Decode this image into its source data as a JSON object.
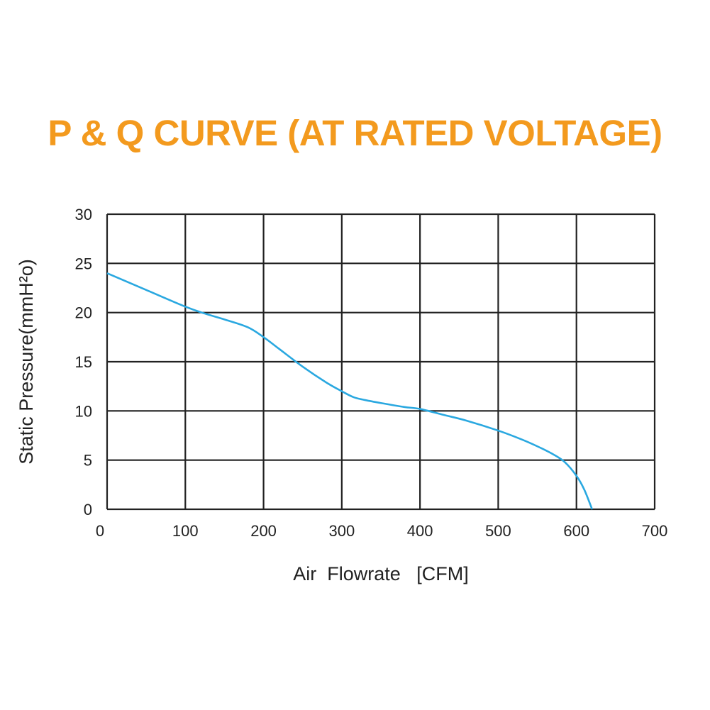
{
  "colors": {
    "title": "#f39a1e",
    "curve": "#2aa8e0",
    "grid": "#222222",
    "text": "#222222"
  },
  "chart_data": {
    "type": "line",
    "title": "P & Q CURVE (AT RATED VOLTAGE)",
    "xlabel": "Air  Flowrate   [CFM]",
    "ylabel": "Static Pressure(mmH²o)",
    "xlim": [
      0,
      700
    ],
    "ylim": [
      0,
      30
    ],
    "xticks": [
      0,
      100,
      200,
      300,
      400,
      500,
      600,
      700
    ],
    "yticks": [
      0,
      5,
      10,
      15,
      20,
      25,
      30
    ],
    "grid": true,
    "series": [
      {
        "x": [
          0,
          50,
          100,
          125,
          150,
          180,
          200,
          220,
          250,
          280,
          300,
          315,
          330,
          350,
          380,
          400,
          430,
          460,
          500,
          530,
          550,
          570,
          585,
          600,
          610,
          620
        ],
        "y": [
          24,
          22.3,
          20.6,
          19.9,
          19.3,
          18.5,
          17.5,
          16.3,
          14.5,
          12.9,
          12.0,
          11.4,
          11.1,
          10.8,
          10.4,
          10.2,
          9.6,
          9.0,
          8.0,
          7.1,
          6.4,
          5.6,
          4.8,
          3.4,
          2.0,
          0
        ]
      }
    ]
  }
}
